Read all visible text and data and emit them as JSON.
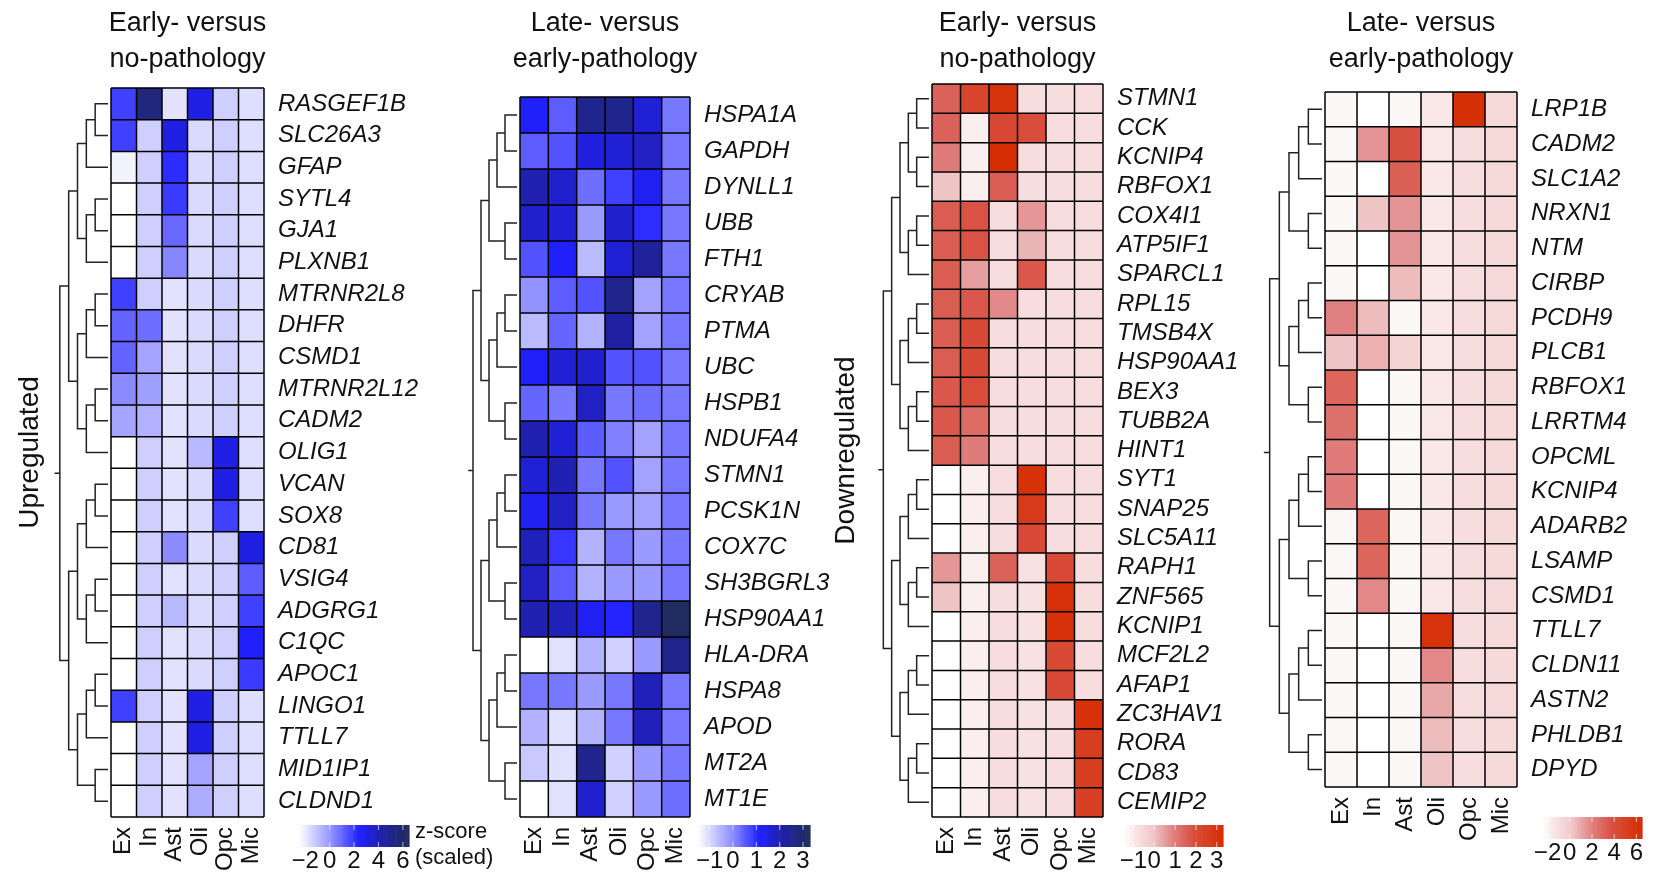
{
  "chart_data": [
    {
      "type": "heatmap",
      "title": "Early- versus no-pathology",
      "ylabel": "Upregulated",
      "clabel": "z-score (scaled)",
      "categories": [
        "Ex",
        "In",
        "Ast",
        "Oli",
        "Opc",
        "Mic"
      ],
      "y_categories": [
        "RASGEF1B",
        "SLC26A3",
        "GFAP",
        "SYTL4",
        "GJA1",
        "PLXNB1",
        "MTRNR2L8",
        "DHFR",
        "CSMD1",
        "MTRNR2L12",
        "CADM2",
        "OLIG1",
        "VCAN",
        "SOX8",
        "CD81",
        "VSIG4",
        "ADGRG1",
        "C1QC",
        "APOC1",
        "LINGO1",
        "TTLL7",
        "MID1IP1",
        "CLDND1"
      ],
      "cells": [
        [
          1.8,
          5.5,
          -1.8,
          3.0,
          -1.3,
          -1.7
        ],
        [
          1.8,
          -1.3,
          3.0,
          -1.6,
          -1.3,
          -1.7
        ],
        [
          -2.2,
          -1.3,
          2.2,
          -1.6,
          -1.3,
          -1.7
        ],
        [
          -2.5,
          -1.3,
          1.9,
          -1.6,
          -1.3,
          -1.7
        ],
        [
          -2.5,
          -1.3,
          1.0,
          -1.6,
          -1.3,
          -1.7
        ],
        [
          -2.5,
          -1.3,
          0.4,
          -1.6,
          -1.3,
          -1.7
        ],
        [
          1.8,
          -1.3,
          -1.8,
          -1.6,
          -1.3,
          -1.7
        ],
        [
          1.1,
          0.9,
          -1.8,
          -1.6,
          -1.3,
          -1.7
        ],
        [
          1.1,
          -0.3,
          -1.8,
          -1.6,
          -1.3,
          -1.7
        ],
        [
          0.3,
          -0.2,
          -1.8,
          -1.6,
          -1.3,
          -1.7
        ],
        [
          -0.3,
          -0.6,
          -1.8,
          -1.6,
          -1.3,
          -1.7
        ],
        [
          -2.5,
          -1.3,
          -1.8,
          -0.8,
          3.0,
          -1.7
        ],
        [
          -2.5,
          -1.3,
          -1.8,
          -1.6,
          3.0,
          -1.7
        ],
        [
          -2.5,
          -1.3,
          -1.8,
          -1.6,
          1.8,
          -1.7
        ],
        [
          -2.5,
          -1.3,
          0.3,
          -1.6,
          -1.3,
          3.0
        ],
        [
          -2.5,
          -1.3,
          -1.8,
          -1.6,
          -1.3,
          1.2
        ],
        [
          -2.5,
          -1.3,
          -0.8,
          -1.6,
          -1.3,
          1.8
        ],
        [
          -2.5,
          -1.3,
          -1.8,
          -1.6,
          -1.3,
          2.5
        ],
        [
          -2.5,
          -1.3,
          -1.8,
          -1.6,
          -1.3,
          1.9
        ],
        [
          1.8,
          -1.3,
          -1.8,
          3.0,
          -1.3,
          -1.7
        ],
        [
          -2.5,
          -1.3,
          -1.8,
          3.0,
          -1.3,
          -1.7
        ],
        [
          -2.5,
          -1.3,
          -1.8,
          -0.3,
          -1.3,
          -1.7
        ],
        [
          -2.5,
          -1.3,
          -1.8,
          -0.5,
          -1.3,
          -1.7
        ]
      ],
      "clim": [
        -2.5,
        6.5
      ],
      "cticks": [
        -2,
        0,
        2,
        4,
        6
      ]
    },
    {
      "type": "heatmap",
      "title": "Late- versus early-pathology",
      "categories": [
        "Ex",
        "In",
        "Ast",
        "Oli",
        "Opc",
        "Mic"
      ],
      "y_categories": [
        "HSPA1A",
        "GAPDH",
        "DYNLL1",
        "UBB",
        "FTH1",
        "CRYAB",
        "PTMA",
        "UBC",
        "HSPB1",
        "NDUFA4",
        "STMN1",
        "PCSK1N",
        "COX7C",
        "SH3BGRL3",
        "HSP90AA1",
        "HLA-DRA",
        "HSPA8",
        "APOD",
        "MT2A",
        "MT1E"
      ],
      "cells": [
        [
          1.2,
          0.5,
          2.5,
          2.5,
          1.6,
          0.2
        ],
        [
          0.5,
          0.6,
          1.5,
          1.6,
          1.8,
          0.2
        ],
        [
          2.0,
          1.7,
          0.3,
          0.8,
          1.3,
          0.2
        ],
        [
          1.7,
          1.6,
          -0.2,
          1.7,
          1.0,
          0.2
        ],
        [
          0.6,
          1.2,
          -0.6,
          1.6,
          2.3,
          0.2
        ],
        [
          -0.1,
          0.5,
          0.6,
          2.5,
          -0.3,
          0.2
        ],
        [
          -0.6,
          0.4,
          -0.5,
          2.2,
          -0.3,
          0.2
        ],
        [
          1.2,
          1.6,
          1.7,
          0.6,
          0.6,
          0.2
        ],
        [
          0.4,
          0.2,
          1.8,
          0.2,
          0.3,
          0.2
        ],
        [
          2.0,
          1.6,
          0.5,
          0.1,
          -0.3,
          0.2
        ],
        [
          1.6,
          2.0,
          0.2,
          0.6,
          -0.3,
          0.2
        ],
        [
          1.3,
          1.8,
          0.2,
          -0.2,
          -0.3,
          0.2
        ],
        [
          1.9,
          0.9,
          -0.5,
          0.2,
          -0.2,
          0.2
        ],
        [
          1.8,
          0.5,
          -0.5,
          -0.2,
          -0.2,
          0.2
        ],
        [
          2.0,
          1.9,
          1.3,
          1.1,
          2.5,
          3.2
        ],
        [
          -1.5,
          -1.1,
          -0.5,
          -0.9,
          -0.2,
          2.5
        ],
        [
          0.2,
          0.2,
          -0.2,
          0.2,
          1.9,
          0.2
        ],
        [
          -0.5,
          -1.1,
          -0.5,
          0.2,
          1.9,
          0.2
        ],
        [
          -0.8,
          -1.1,
          2.5,
          -0.9,
          -0.2,
          0.2
        ],
        [
          -1.5,
          -1.1,
          1.7,
          -0.9,
          -0.2,
          0.3
        ]
      ],
      "clim": [
        -1.5,
        3.3
      ],
      "cticks": [
        -1,
        0,
        1,
        2,
        3
      ]
    },
    {
      "type": "heatmap",
      "title": "Early- versus no-pathology",
      "ylabel": "Downregulated",
      "categories": [
        "Ex",
        "In",
        "Ast",
        "Oli",
        "Opc",
        "Mic"
      ],
      "y_categories": [
        "STMN1",
        "CCK",
        "KCNIP4",
        "RBFOX1",
        "COX4I1",
        "ATP5IF1",
        "SPARCL1",
        "RPL15",
        "TMSB4X",
        "HSP90AA1",
        "BEX3",
        "TUBB2A",
        "HINT1",
        "SYT1",
        "SNAP25",
        "SLC5A11",
        "RAPH1",
        "ZNF565",
        "KCNIP1",
        "MCF2L2",
        "AFAP1",
        "ZC3HAV1",
        "RORA",
        "CD83",
        "CEMIP2"
      ],
      "cells": [
        [
          1.5,
          2.3,
          3.0,
          -0.7,
          -0.7,
          -0.7
        ],
        [
          1.5,
          -1.1,
          2.2,
          2.0,
          -0.7,
          -0.7
        ],
        [
          1.0,
          -1.1,
          3.2,
          -0.7,
          -0.7,
          -0.7
        ],
        [
          0.0,
          -1.1,
          1.6,
          -0.7,
          -0.7,
          -0.7
        ],
        [
          1.6,
          1.8,
          -0.7,
          0.6,
          -0.7,
          -0.7
        ],
        [
          1.6,
          1.8,
          -0.7,
          0.2,
          -0.7,
          -0.7
        ],
        [
          1.6,
          0.5,
          -0.7,
          1.7,
          -0.7,
          -0.7
        ],
        [
          1.6,
          1.7,
          0.8,
          -0.7,
          -0.7,
          -0.7
        ],
        [
          1.6,
          2.1,
          -0.7,
          -0.7,
          -0.7,
          -0.7
        ],
        [
          1.6,
          2.1,
          -0.7,
          -0.7,
          -0.7,
          -0.7
        ],
        [
          1.7,
          2.0,
          -0.7,
          -0.7,
          -0.7,
          -0.7
        ],
        [
          1.7,
          1.3,
          -0.7,
          -0.7,
          -0.7,
          -0.7
        ],
        [
          1.6,
          1.0,
          -0.7,
          -0.7,
          -0.7,
          -0.7
        ],
        [
          -1.5,
          -1.1,
          -0.7,
          3.1,
          -0.7,
          -0.7
        ],
        [
          -1.5,
          -1.1,
          -0.7,
          2.7,
          -0.7,
          -0.7
        ],
        [
          -1.5,
          -1.1,
          -0.7,
          2.1,
          -0.7,
          -0.7
        ],
        [
          0.6,
          -1.1,
          1.5,
          -0.8,
          2.1,
          -0.7
        ],
        [
          0.0,
          -1.1,
          -0.7,
          -0.8,
          3.1,
          -0.7
        ],
        [
          -1.5,
          -1.1,
          -0.7,
          -0.8,
          3.1,
          -0.7
        ],
        [
          -1.5,
          -1.1,
          -0.7,
          -0.8,
          2.1,
          -0.7
        ],
        [
          -1.5,
          -1.1,
          -0.7,
          -0.8,
          2.1,
          -0.7
        ],
        [
          -1.5,
          -1.1,
          -0.7,
          -0.8,
          -0.7,
          3.1
        ],
        [
          -1.5,
          -1.1,
          -0.7,
          -0.8,
          -0.7,
          2.6
        ],
        [
          -1.5,
          -1.1,
          -0.7,
          -0.8,
          -0.7,
          2.6
        ],
        [
          -1.5,
          -1.1,
          -0.7,
          -0.8,
          -0.7,
          2.5
        ]
      ],
      "clim": [
        -1.5,
        3.3
      ],
      "cticks": [
        -1,
        0,
        1,
        2,
        3
      ]
    },
    {
      "type": "heatmap",
      "title": "Late- versus early-pathology",
      "categories": [
        "Ex",
        "In",
        "Ast",
        "Oli",
        "Opc",
        "Mic"
      ],
      "y_categories": [
        "LRP1B",
        "CADM2",
        "SLC1A2",
        "NRXN1",
        "NTM",
        "CIRBP",
        "PCDH9",
        "PLCB1",
        "RBFOX1",
        "LRRTM4",
        "OPCML",
        "KCNIP4",
        "ADARB2",
        "LSAMP",
        "CSMD1",
        "TTLL7",
        "CLDN11",
        "ASTN2",
        "PHLDB1",
        "DPYD"
      ],
      "cells": [
        [
          -2.2,
          -2.5,
          -2.2,
          -1.5,
          6.2,
          -0.8
        ],
        [
          -2.2,
          1.5,
          3.8,
          -1.5,
          -1.0,
          -0.8
        ],
        [
          -2.2,
          -2.5,
          3.2,
          -1.5,
          -1.0,
          -0.8
        ],
        [
          -2.2,
          0.3,
          1.5,
          -1.5,
          -1.0,
          -0.8
        ],
        [
          -2.2,
          -2.5,
          1.5,
          -1.5,
          -1.0,
          -0.8
        ],
        [
          -2.2,
          -2.5,
          0.5,
          -1.5,
          -1.0,
          -0.8
        ],
        [
          2.0,
          0.5,
          -2.2,
          -1.5,
          -1.0,
          -0.8
        ],
        [
          0.3,
          0.8,
          -0.5,
          -1.5,
          -1.0,
          -0.8
        ],
        [
          3.0,
          -2.5,
          -2.2,
          -1.5,
          -1.0,
          -0.8
        ],
        [
          2.6,
          -2.5,
          -2.2,
          -1.5,
          -1.0,
          -0.8
        ],
        [
          2.2,
          -2.5,
          -2.2,
          -1.5,
          -1.0,
          -0.8
        ],
        [
          2.2,
          -2.5,
          -2.2,
          -1.5,
          -1.0,
          -0.8
        ],
        [
          -2.2,
          3.0,
          -2.2,
          -1.5,
          -1.0,
          -0.8
        ],
        [
          -2.2,
          3.0,
          -2.2,
          -1.5,
          -1.0,
          -0.8
        ],
        [
          -2.2,
          1.8,
          -2.2,
          -1.5,
          -1.0,
          -0.8
        ],
        [
          -2.2,
          -2.5,
          -2.2,
          6.0,
          -1.0,
          -0.8
        ],
        [
          -2.2,
          -2.5,
          -2.2,
          1.8,
          -1.0,
          -0.8
        ],
        [
          -2.2,
          -2.5,
          -2.2,
          1.0,
          -1.0,
          -0.8
        ],
        [
          -2.2,
          -2.5,
          -2.2,
          0.5,
          -1.0,
          -0.8
        ],
        [
          -2.2,
          -2.5,
          -2.2,
          0.3,
          -1.0,
          -0.8
        ]
      ],
      "clim": [
        -2.5,
        6.5
      ],
      "cticks": [
        -2,
        0,
        2,
        4,
        6
      ]
    }
  ]
}
